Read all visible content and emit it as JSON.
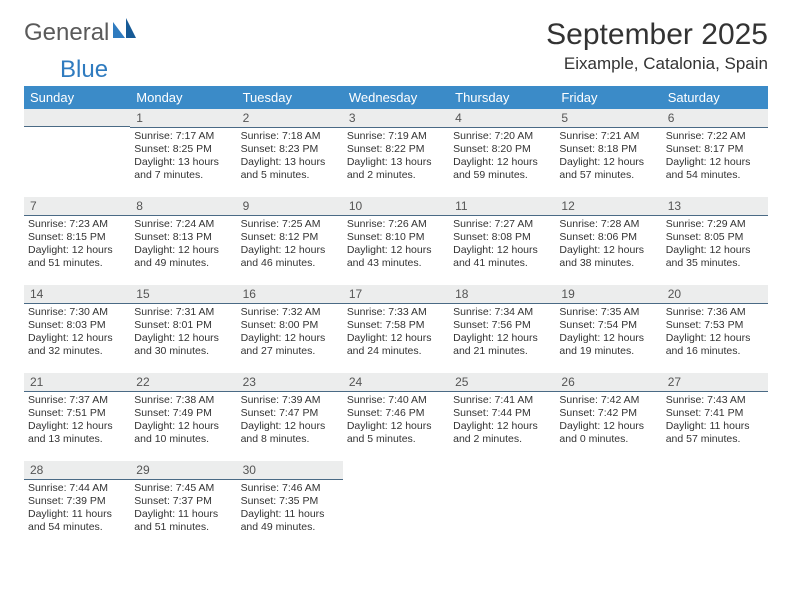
{
  "logo": {
    "general": "General",
    "blue": "Blue"
  },
  "title": "September 2025",
  "location": "Eixample, Catalonia, Spain",
  "colors": {
    "header_bg": "#3b8bc8",
    "header_text": "#ffffff",
    "daybar_bg": "#eceded",
    "daybar_border": "#4a6a85",
    "text": "#333333",
    "logo_gray": "#5a5a5a",
    "logo_blue": "#2f7bbf"
  },
  "weekdays": [
    "Sunday",
    "Monday",
    "Tuesday",
    "Wednesday",
    "Thursday",
    "Friday",
    "Saturday"
  ],
  "weeks": [
    [
      null,
      {
        "n": "1",
        "sr": "Sunrise: 7:17 AM",
        "ss": "Sunset: 8:25 PM",
        "dl": "Daylight: 13 hours and 7 minutes."
      },
      {
        "n": "2",
        "sr": "Sunrise: 7:18 AM",
        "ss": "Sunset: 8:23 PM",
        "dl": "Daylight: 13 hours and 5 minutes."
      },
      {
        "n": "3",
        "sr": "Sunrise: 7:19 AM",
        "ss": "Sunset: 8:22 PM",
        "dl": "Daylight: 13 hours and 2 minutes."
      },
      {
        "n": "4",
        "sr": "Sunrise: 7:20 AM",
        "ss": "Sunset: 8:20 PM",
        "dl": "Daylight: 12 hours and 59 minutes."
      },
      {
        "n": "5",
        "sr": "Sunrise: 7:21 AM",
        "ss": "Sunset: 8:18 PM",
        "dl": "Daylight: 12 hours and 57 minutes."
      },
      {
        "n": "6",
        "sr": "Sunrise: 7:22 AM",
        "ss": "Sunset: 8:17 PM",
        "dl": "Daylight: 12 hours and 54 minutes."
      }
    ],
    [
      {
        "n": "7",
        "sr": "Sunrise: 7:23 AM",
        "ss": "Sunset: 8:15 PM",
        "dl": "Daylight: 12 hours and 51 minutes."
      },
      {
        "n": "8",
        "sr": "Sunrise: 7:24 AM",
        "ss": "Sunset: 8:13 PM",
        "dl": "Daylight: 12 hours and 49 minutes."
      },
      {
        "n": "9",
        "sr": "Sunrise: 7:25 AM",
        "ss": "Sunset: 8:12 PM",
        "dl": "Daylight: 12 hours and 46 minutes."
      },
      {
        "n": "10",
        "sr": "Sunrise: 7:26 AM",
        "ss": "Sunset: 8:10 PM",
        "dl": "Daylight: 12 hours and 43 minutes."
      },
      {
        "n": "11",
        "sr": "Sunrise: 7:27 AM",
        "ss": "Sunset: 8:08 PM",
        "dl": "Daylight: 12 hours and 41 minutes."
      },
      {
        "n": "12",
        "sr": "Sunrise: 7:28 AM",
        "ss": "Sunset: 8:06 PM",
        "dl": "Daylight: 12 hours and 38 minutes."
      },
      {
        "n": "13",
        "sr": "Sunrise: 7:29 AM",
        "ss": "Sunset: 8:05 PM",
        "dl": "Daylight: 12 hours and 35 minutes."
      }
    ],
    [
      {
        "n": "14",
        "sr": "Sunrise: 7:30 AM",
        "ss": "Sunset: 8:03 PM",
        "dl": "Daylight: 12 hours and 32 minutes."
      },
      {
        "n": "15",
        "sr": "Sunrise: 7:31 AM",
        "ss": "Sunset: 8:01 PM",
        "dl": "Daylight: 12 hours and 30 minutes."
      },
      {
        "n": "16",
        "sr": "Sunrise: 7:32 AM",
        "ss": "Sunset: 8:00 PM",
        "dl": "Daylight: 12 hours and 27 minutes."
      },
      {
        "n": "17",
        "sr": "Sunrise: 7:33 AM",
        "ss": "Sunset: 7:58 PM",
        "dl": "Daylight: 12 hours and 24 minutes."
      },
      {
        "n": "18",
        "sr": "Sunrise: 7:34 AM",
        "ss": "Sunset: 7:56 PM",
        "dl": "Daylight: 12 hours and 21 minutes."
      },
      {
        "n": "19",
        "sr": "Sunrise: 7:35 AM",
        "ss": "Sunset: 7:54 PM",
        "dl": "Daylight: 12 hours and 19 minutes."
      },
      {
        "n": "20",
        "sr": "Sunrise: 7:36 AM",
        "ss": "Sunset: 7:53 PM",
        "dl": "Daylight: 12 hours and 16 minutes."
      }
    ],
    [
      {
        "n": "21",
        "sr": "Sunrise: 7:37 AM",
        "ss": "Sunset: 7:51 PM",
        "dl": "Daylight: 12 hours and 13 minutes."
      },
      {
        "n": "22",
        "sr": "Sunrise: 7:38 AM",
        "ss": "Sunset: 7:49 PM",
        "dl": "Daylight: 12 hours and 10 minutes."
      },
      {
        "n": "23",
        "sr": "Sunrise: 7:39 AM",
        "ss": "Sunset: 7:47 PM",
        "dl": "Daylight: 12 hours and 8 minutes."
      },
      {
        "n": "24",
        "sr": "Sunrise: 7:40 AM",
        "ss": "Sunset: 7:46 PM",
        "dl": "Daylight: 12 hours and 5 minutes."
      },
      {
        "n": "25",
        "sr": "Sunrise: 7:41 AM",
        "ss": "Sunset: 7:44 PM",
        "dl": "Daylight: 12 hours and 2 minutes."
      },
      {
        "n": "26",
        "sr": "Sunrise: 7:42 AM",
        "ss": "Sunset: 7:42 PM",
        "dl": "Daylight: 12 hours and 0 minutes."
      },
      {
        "n": "27",
        "sr": "Sunrise: 7:43 AM",
        "ss": "Sunset: 7:41 PM",
        "dl": "Daylight: 11 hours and 57 minutes."
      }
    ],
    [
      {
        "n": "28",
        "sr": "Sunrise: 7:44 AM",
        "ss": "Sunset: 7:39 PM",
        "dl": "Daylight: 11 hours and 54 minutes."
      },
      {
        "n": "29",
        "sr": "Sunrise: 7:45 AM",
        "ss": "Sunset: 7:37 PM",
        "dl": "Daylight: 11 hours and 51 minutes."
      },
      {
        "n": "30",
        "sr": "Sunrise: 7:46 AM",
        "ss": "Sunset: 7:35 PM",
        "dl": "Daylight: 11 hours and 49 minutes."
      },
      null,
      null,
      null,
      null
    ]
  ]
}
